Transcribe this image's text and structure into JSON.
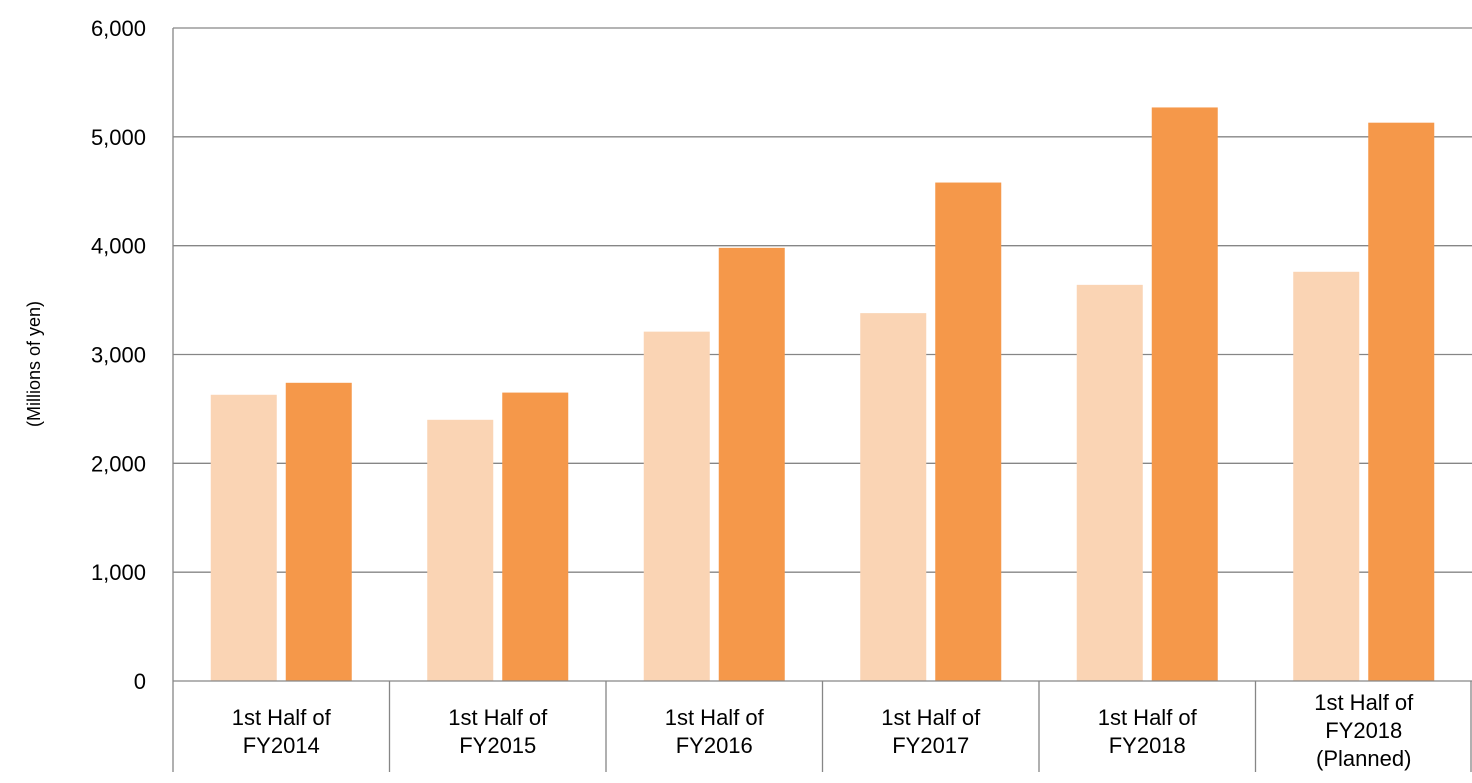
{
  "chart_data": {
    "type": "bar",
    "categories": [
      [
        "1st Half of",
        "FY2014"
      ],
      [
        "1st Half of",
        "FY2015"
      ],
      [
        "1st Half of",
        "FY2016"
      ],
      [
        "1st Half of",
        "FY2017"
      ],
      [
        "1st Half of",
        "FY2018"
      ],
      [
        "1st Half of",
        "FY2018",
        "(Planned)"
      ]
    ],
    "series": [
      {
        "values": [
          2630,
          2400,
          3210,
          3380,
          3640,
          3760
        ],
        "color": "#FAD4B4"
      },
      {
        "values": [
          2740,
          2650,
          3980,
          4580,
          5270,
          5130
        ],
        "color": "#F5984A"
      }
    ],
    "title": "",
    "xlabel": "",
    "ylabel": "(Millions of yen)",
    "ylim": [
      0,
      6000
    ],
    "yticks": [
      0,
      1000,
      2000,
      3000,
      4000,
      5000,
      6000
    ],
    "ytick_labels": [
      "0",
      "1,000",
      "2,000",
      "3,000",
      "4,000",
      "5,000",
      "6,000"
    ],
    "grid": true,
    "legend": "none"
  }
}
